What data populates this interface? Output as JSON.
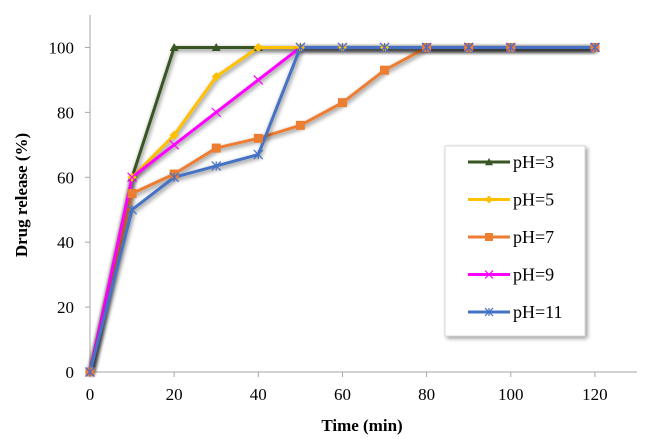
{
  "chart_data": {
    "type": "line",
    "title": "",
    "xlabel": "Time (min)",
    "ylabel": "Drug release (%)",
    "xlim": [
      0,
      130
    ],
    "ylim": [
      0,
      110
    ],
    "xticks": [
      0,
      20,
      40,
      60,
      80,
      100,
      120
    ],
    "yticks": [
      0,
      20,
      40,
      60,
      80,
      100
    ],
    "grid": false,
    "legend_position": "right",
    "x": [
      0,
      10,
      20,
      30,
      40,
      50,
      60,
      70,
      80,
      90,
      100,
      120
    ],
    "series": [
      {
        "name": "pH=3",
        "color": "#375623",
        "marker": "triangle",
        "values": [
          0,
          60,
          100,
          100,
          100,
          100,
          100,
          100,
          100,
          100,
          100,
          100
        ]
      },
      {
        "name": "pH=5",
        "color": "#FFC000",
        "marker": "diamond",
        "values": [
          0,
          60,
          73,
          91,
          100,
          100,
          100,
          100,
          100,
          100,
          100,
          100
        ]
      },
      {
        "name": "pH=7",
        "color": "#ED7D31",
        "marker": "square",
        "values": [
          0,
          55,
          61,
          69,
          72,
          76,
          83,
          93,
          100,
          100,
          100,
          100
        ]
      },
      {
        "name": "pH=9",
        "color": "#FF00FF",
        "marker": "x",
        "values": [
          0,
          60,
          70,
          80,
          90,
          100,
          100,
          100,
          100,
          100,
          100,
          100
        ]
      },
      {
        "name": "pH=11",
        "color": "#4472C4",
        "marker": "star",
        "values": [
          0,
          50,
          60,
          63.5,
          67,
          100,
          100,
          100,
          100,
          100,
          100,
          100
        ]
      }
    ]
  }
}
